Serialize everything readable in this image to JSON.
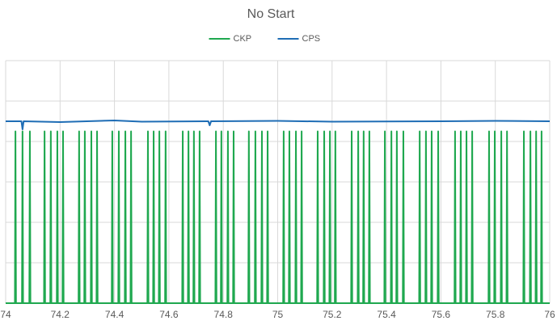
{
  "chart_data": {
    "type": "line",
    "title": "No Start",
    "xlim": [
      74,
      76
    ],
    "xticks": [
      74,
      74.2,
      74.4,
      74.6,
      74.8,
      75,
      75.2,
      75.4,
      75.6,
      75.8,
      76
    ],
    "ylim": [
      0,
      6
    ],
    "yticks": [
      0,
      1,
      2,
      3,
      4,
      5,
      6
    ],
    "grid": true,
    "legend": "top",
    "series": [
      {
        "name": "CKP",
        "color": "#1fa84f",
        "x": [
          74,
          74.034,
          74.036,
          74.038,
          74.06,
          74.062,
          74.064,
          74.087,
          74.089,
          74.091,
          74.141,
          74.143,
          74.145,
          74.164,
          74.166,
          74.168,
          74.188,
          74.19,
          74.192,
          74.209,
          74.211,
          74.213,
          74.268,
          74.27,
          74.272,
          74.289,
          74.291,
          74.293,
          74.313,
          74.315,
          74.317,
          74.334,
          74.336,
          74.338,
          74.39,
          74.392,
          74.394,
          74.414,
          74.416,
          74.418,
          74.438,
          74.44,
          74.442,
          74.459,
          74.461,
          74.463,
          74.521,
          74.523,
          74.525,
          74.542,
          74.544,
          74.546,
          74.563,
          74.565,
          74.567,
          74.586,
          74.588,
          74.59,
          74.649,
          74.651,
          74.653,
          74.67,
          74.672,
          74.674,
          74.69,
          74.692,
          74.694,
          74.711,
          74.713,
          74.715,
          74.771,
          74.773,
          74.775,
          74.791,
          74.793,
          74.795,
          74.815,
          74.817,
          74.819,
          74.836,
          74.838,
          74.84,
          74.892,
          74.894,
          74.896,
          74.916,
          74.918,
          74.92,
          74.94,
          74.942,
          74.944,
          74.961,
          74.963,
          74.965,
          75.02,
          75.022,
          75.024,
          75.041,
          75.043,
          75.045,
          75.065,
          75.067,
          75.069,
          75.086,
          75.088,
          75.09,
          75.145,
          75.147,
          75.149,
          75.169,
          75.171,
          75.173,
          75.19,
          75.192,
          75.194,
          75.21,
          75.212,
          75.214,
          75.27,
          75.272,
          75.274,
          75.294,
          75.296,
          75.298,
          75.314,
          75.316,
          75.318,
          75.335,
          75.337,
          75.339,
          75.392,
          75.394,
          75.396,
          75.416,
          75.418,
          75.42,
          75.436,
          75.438,
          75.44,
          75.46,
          75.462,
          75.464,
          75.52,
          75.522,
          75.524,
          75.543,
          75.545,
          75.547,
          75.564,
          75.566,
          75.568,
          75.588,
          75.59,
          75.592,
          75.65,
          75.652,
          75.654,
          75.671,
          75.673,
          75.675,
          75.692,
          75.694,
          75.696,
          75.713,
          75.715,
          75.717,
          75.775,
          75.777,
          75.779,
          75.796,
          75.798,
          75.8,
          75.82,
          75.822,
          75.824,
          75.841,
          75.843,
          75.845,
          75.903,
          75.905,
          75.907,
          75.927,
          75.929,
          75.931,
          75.948,
          75.95,
          75.952,
          75.968,
          75.97,
          75.972,
          76
        ],
        "values": [
          0,
          0,
          4.25,
          0,
          0,
          4.25,
          0,
          0,
          4.25,
          0,
          0,
          4.25,
          0,
          0,
          4.25,
          0,
          0,
          4.25,
          0,
          0,
          4.25,
          0,
          0,
          4.25,
          0,
          0,
          4.25,
          0,
          0,
          4.25,
          0,
          0,
          4.25,
          0,
          0,
          4.25,
          0,
          0,
          4.25,
          0,
          0,
          4.25,
          0,
          0,
          4.25,
          0,
          0,
          4.25,
          0,
          0,
          4.25,
          0,
          0,
          4.25,
          0,
          0,
          4.25,
          0,
          0,
          4.25,
          0,
          0,
          4.25,
          0,
          0,
          4.25,
          0,
          0,
          4.25,
          0,
          0,
          4.25,
          0,
          0,
          4.25,
          0,
          0,
          4.25,
          0,
          0,
          4.25,
          0,
          0,
          4.25,
          0,
          0,
          4.25,
          0,
          0,
          4.25,
          0,
          0,
          4.25,
          0,
          0,
          4.25,
          0,
          0,
          4.25,
          0,
          0,
          4.25,
          0,
          0,
          4.25,
          0,
          0,
          4.25,
          0,
          0,
          4.25,
          0,
          0,
          4.25,
          0,
          0,
          4.25,
          0,
          0,
          4.25,
          0,
          0,
          4.25,
          0,
          0,
          4.25,
          0,
          0,
          4.25,
          0,
          0,
          4.25,
          0,
          0,
          4.25,
          0,
          0,
          4.25,
          0,
          0,
          4.25,
          0,
          0,
          4.25,
          0,
          0,
          4.25,
          0,
          0,
          4.25,
          0,
          0,
          4.25,
          0,
          0,
          4.25,
          0,
          0,
          4.25,
          0,
          0,
          4.25,
          0,
          0,
          4.25,
          0,
          0,
          4.25,
          0,
          0,
          4.25,
          0,
          0,
          4.25,
          0,
          0,
          4.25,
          0,
          0,
          4.25,
          0,
          0,
          4.25,
          0,
          0,
          4.25,
          0,
          0,
          4.25,
          0,
          0
        ]
      },
      {
        "name": "CPS",
        "color": "#1f6db5",
        "x": [
          74,
          74.058,
          74.062,
          74.066,
          74.2,
          74.4,
          74.5,
          74.745,
          74.75,
          74.755,
          75,
          75.2,
          75.6,
          75.8,
          76
        ],
        "values": [
          4.5,
          4.5,
          4.3,
          4.5,
          4.48,
          4.52,
          4.49,
          4.5,
          4.4,
          4.5,
          4.51,
          4.49,
          4.5,
          4.51,
          4.5
        ]
      }
    ]
  }
}
